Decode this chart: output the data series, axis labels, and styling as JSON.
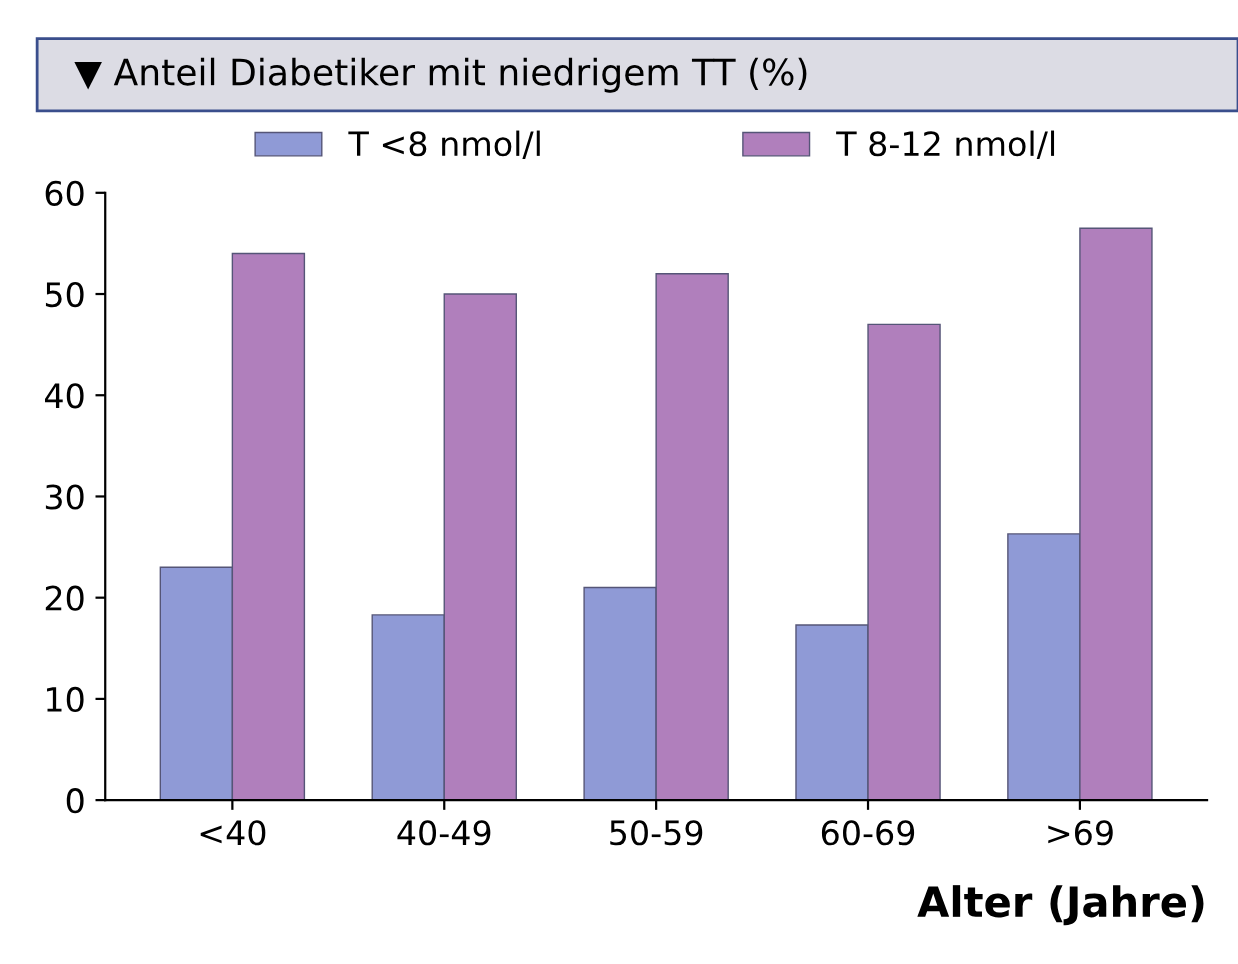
{
  "chart_data": {
    "type": "bar",
    "title": "▼ Anteil Diabetiker mit niedrigem TT (%)",
    "xlabel": "Alter (Jahre)",
    "categories": [
      "<40",
      "40-49",
      "50-59",
      "60-69",
      ">69"
    ],
    "series": [
      {
        "name": "T <8 nmol/l",
        "color": "#8f9ad6",
        "values": [
          23,
          18.3,
          21,
          17.3,
          26.3
        ]
      },
      {
        "name": "T 8-12 nmol/l",
        "color": "#b07fbc",
        "values": [
          54,
          50,
          52,
          47,
          56.5
        ]
      }
    ],
    "ylim": [
      0,
      60
    ],
    "yticks": [
      0,
      10,
      20,
      30,
      40,
      50,
      60
    ],
    "grid": false,
    "legend": "top"
  }
}
